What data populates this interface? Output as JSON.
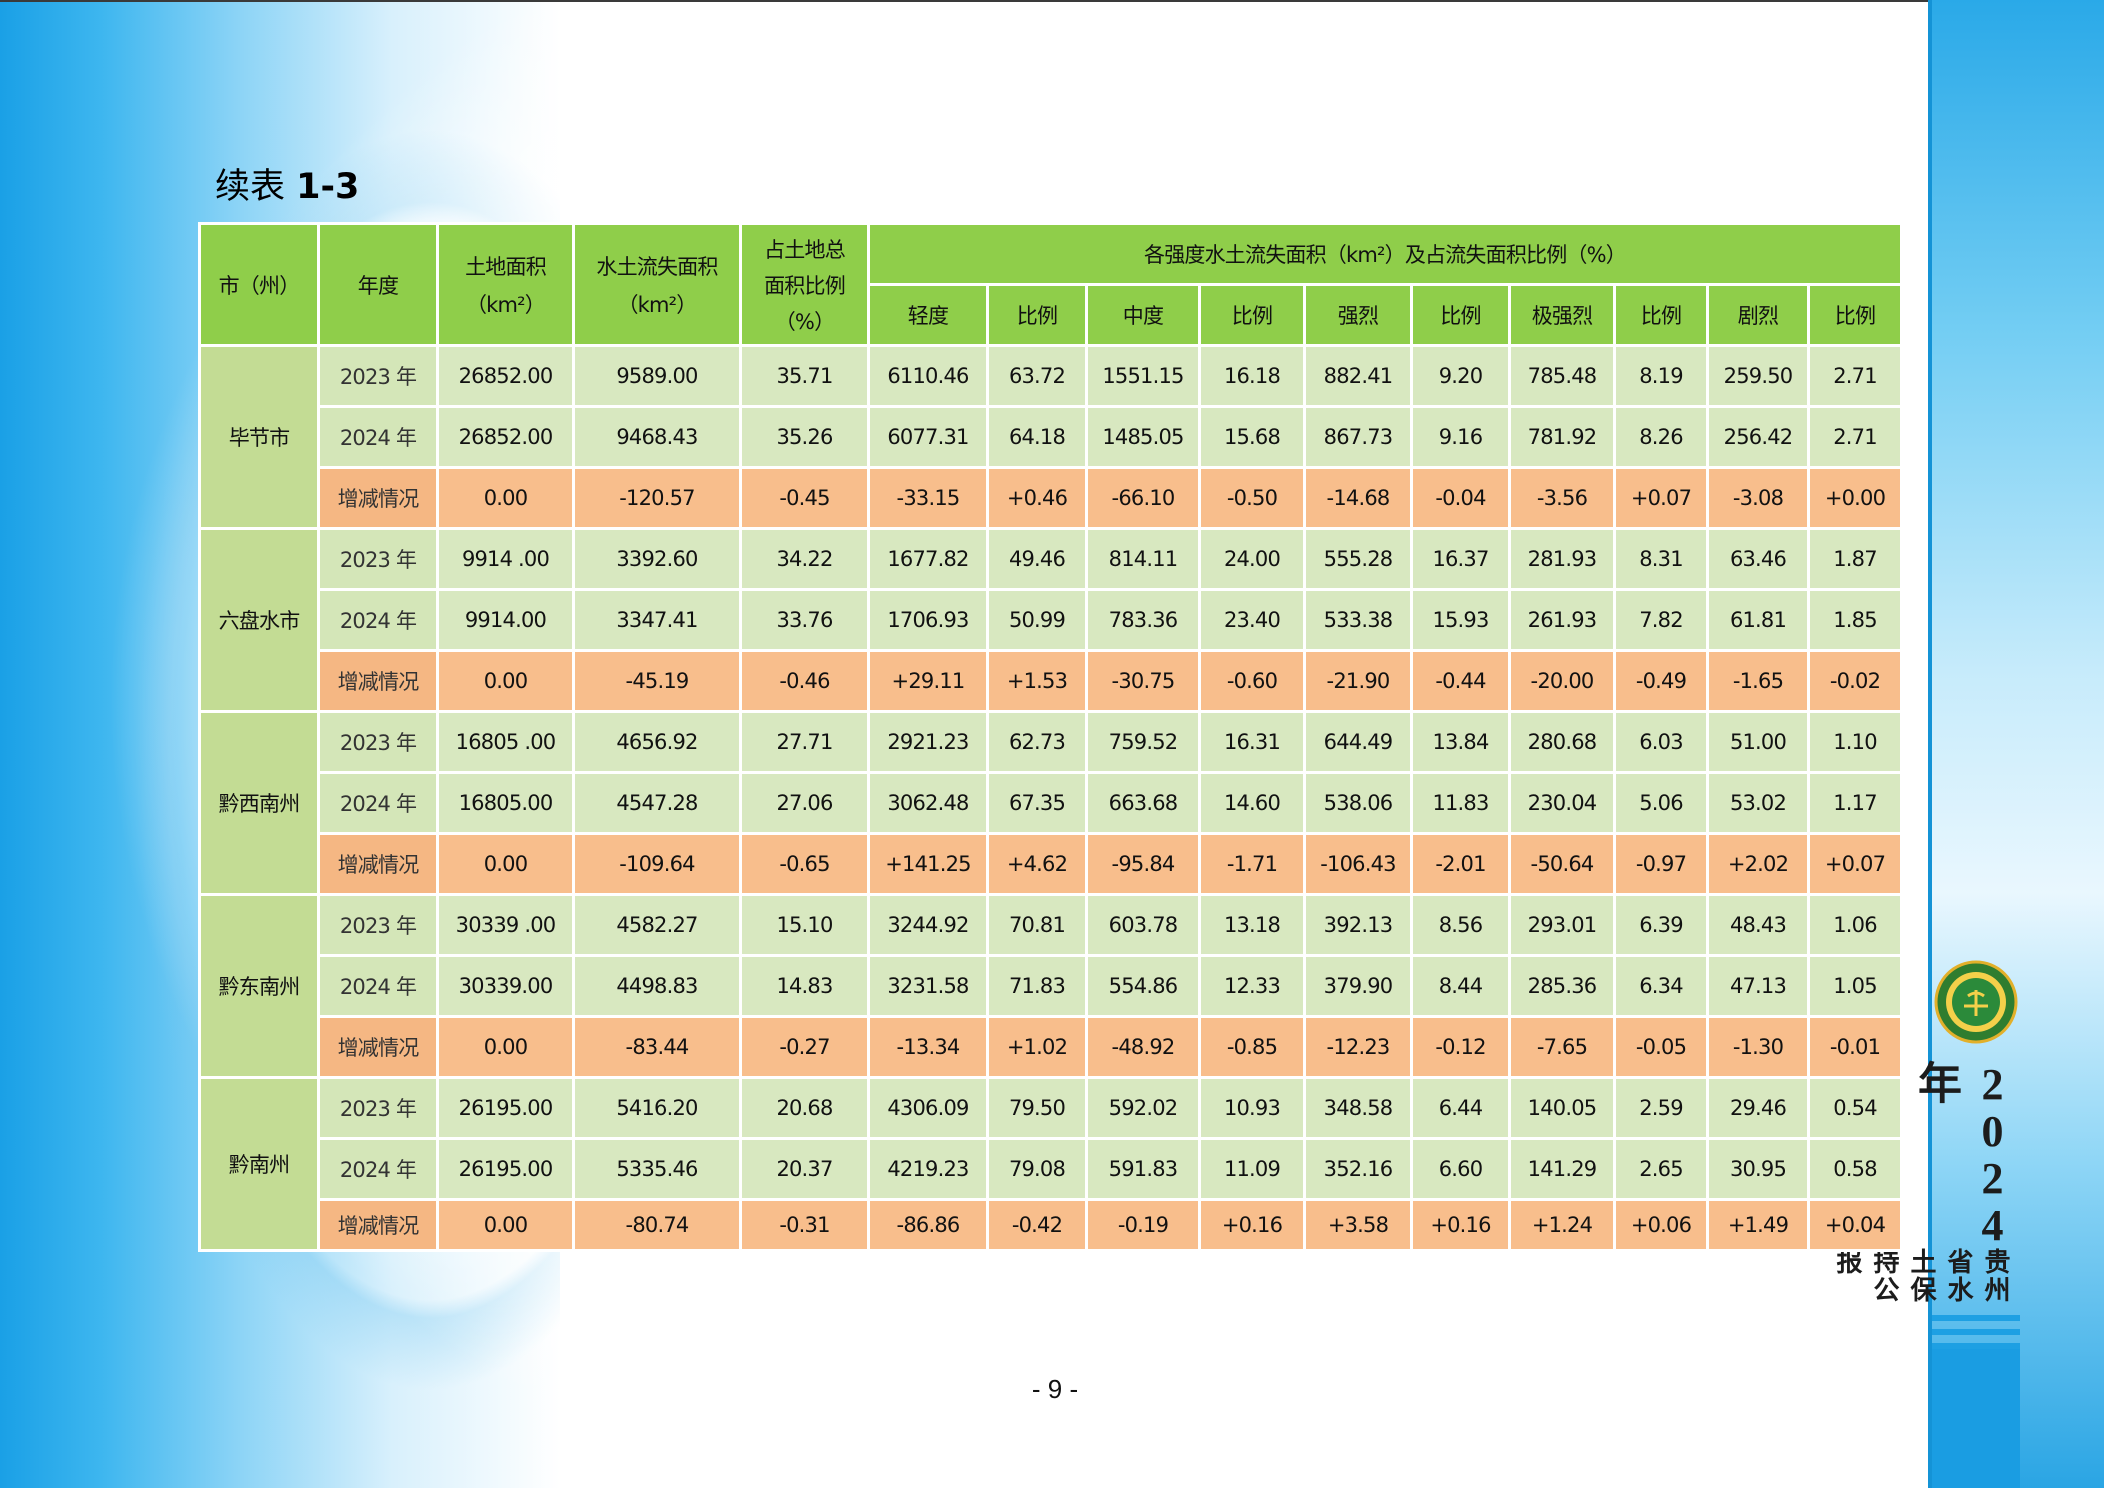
{
  "title_prefix": "续表 ",
  "title_bold": "1-3",
  "header": {
    "city": "市（州）",
    "year": "年度",
    "land_area": "土地面积",
    "land_area_unit": "（km²）",
    "erosion_area": "水土流失面积",
    "erosion_area_unit": "（km²）",
    "ratio_line1": "占土地总",
    "ratio_line2": "面积比例",
    "ratio_line3": "（%）",
    "intensity_group": "各强度水土流失面积（km²）及占流失面积比例（%）",
    "sub": [
      "轻度",
      "比例",
      "中度",
      "比例",
      "强烈",
      "比例",
      "极强烈",
      "比例",
      "剧烈",
      "比例"
    ]
  },
  "groups": [
    {
      "city": "毕节市",
      "rows": [
        {
          "label": "2023 年",
          "change": false,
          "cells": [
            "26852.00",
            "9589.00",
            "35.71",
            "6110.46",
            "63.72",
            "1551.15",
            "16.18",
            "882.41",
            "9.20",
            "785.48",
            "8.19",
            "259.50",
            "2.71"
          ]
        },
        {
          "label": "2024 年",
          "change": false,
          "cells": [
            "26852.00",
            "9468.43",
            "35.26",
            "6077.31",
            "64.18",
            "1485.05",
            "15.68",
            "867.73",
            "9.16",
            "781.92",
            "8.26",
            "256.42",
            "2.71"
          ]
        },
        {
          "label": "增减情况",
          "change": true,
          "cells": [
            "0.00",
            "-120.57",
            "-0.45",
            "-33.15",
            "+0.46",
            "-66.10",
            "-0.50",
            "-14.68",
            "-0.04",
            "-3.56",
            "+0.07",
            "-3.08",
            "+0.00"
          ]
        }
      ]
    },
    {
      "city": "六盘水市",
      "rows": [
        {
          "label": "2023 年",
          "change": false,
          "cells": [
            "9914 .00",
            "3392.60",
            "34.22",
            "1677.82",
            "49.46",
            "814.11",
            "24.00",
            "555.28",
            "16.37",
            "281.93",
            "8.31",
            "63.46",
            "1.87"
          ]
        },
        {
          "label": "2024 年",
          "change": false,
          "cells": [
            "9914.00",
            "3347.41",
            "33.76",
            "1706.93",
            "50.99",
            "783.36",
            "23.40",
            "533.38",
            "15.93",
            "261.93",
            "7.82",
            "61.81",
            "1.85"
          ]
        },
        {
          "label": "增减情况",
          "change": true,
          "cells": [
            "0.00",
            "-45.19",
            "-0.46",
            "+29.11",
            "+1.53",
            "-30.75",
            "-0.60",
            "-21.90",
            "-0.44",
            "-20.00",
            "-0.49",
            "-1.65",
            "-0.02"
          ]
        }
      ]
    },
    {
      "city": "黔西南州",
      "rows": [
        {
          "label": "2023 年",
          "change": false,
          "cells": [
            "16805 .00",
            "4656.92",
            "27.71",
            "2921.23",
            "62.73",
            "759.52",
            "16.31",
            "644.49",
            "13.84",
            "280.68",
            "6.03",
            "51.00",
            "1.10"
          ]
        },
        {
          "label": "2024 年",
          "change": false,
          "cells": [
            "16805.00",
            "4547.28",
            "27.06",
            "3062.48",
            "67.35",
            "663.68",
            "14.60",
            "538.06",
            "11.83",
            "230.04",
            "5.06",
            "53.02",
            "1.17"
          ]
        },
        {
          "label": "增减情况",
          "change": true,
          "cells": [
            "0.00",
            "-109.64",
            "-0.65",
            "+141.25",
            "+4.62",
            "-95.84",
            "-1.71",
            "-106.43",
            "-2.01",
            "-50.64",
            "-0.97",
            "+2.02",
            "+0.07"
          ]
        }
      ]
    },
    {
      "city": "黔东南州",
      "rows": [
        {
          "label": "2023 年",
          "change": false,
          "cells": [
            "30339 .00",
            "4582.27",
            "15.10",
            "3244.92",
            "70.81",
            "603.78",
            "13.18",
            "392.13",
            "8.56",
            "293.01",
            "6.39",
            "48.43",
            "1.06"
          ]
        },
        {
          "label": "2024 年",
          "change": false,
          "cells": [
            "30339.00",
            "4498.83",
            "14.83",
            "3231.58",
            "71.83",
            "554.86",
            "12.33",
            "379.90",
            "8.44",
            "285.36",
            "6.34",
            "47.13",
            "1.05"
          ]
        },
        {
          "label": "增减情况",
          "change": true,
          "cells": [
            "0.00",
            "-83.44",
            "-0.27",
            "-13.34",
            "+1.02",
            "-48.92",
            "-0.85",
            "-12.23",
            "-0.12",
            "-7.65",
            "-0.05",
            "-1.30",
            "-0.01"
          ]
        }
      ]
    },
    {
      "city": "黔南州",
      "rows": [
        {
          "label": "2023 年",
          "change": false,
          "cells": [
            "26195.00",
            "5416.20",
            "20.68",
            "4306.09",
            "79.50",
            "592.02",
            "10.93",
            "348.58",
            "6.44",
            "140.05",
            "2.59",
            "29.46",
            "0.54"
          ]
        },
        {
          "label": "2024 年",
          "change": false,
          "cells": [
            "26195.00",
            "5335.46",
            "20.37",
            "4219.23",
            "79.08",
            "591.83",
            "11.09",
            "352.16",
            "6.60",
            "141.29",
            "2.65",
            "30.95",
            "0.58"
          ]
        },
        {
          "label": "增减情况",
          "change": true,
          "cells": [
            "0.00",
            "-80.74",
            "-0.31",
            "-86.86",
            "-0.42",
            "-0.19",
            "+0.16",
            "+3.58",
            "+0.16",
            "+1.24",
            "+0.06",
            "+1.49",
            "+0.04"
          ]
        }
      ]
    }
  ],
  "side_year": "2024年",
  "side_title": "贵州省水土保持公报",
  "page_number": "- 9 -",
  "colors": {
    "header_green": "#8fce4a",
    "row_green": "#d8e8c0",
    "change_orange": "#f8be8c",
    "city_green": "#c3dc94",
    "side_blue": "#1a9de2"
  }
}
